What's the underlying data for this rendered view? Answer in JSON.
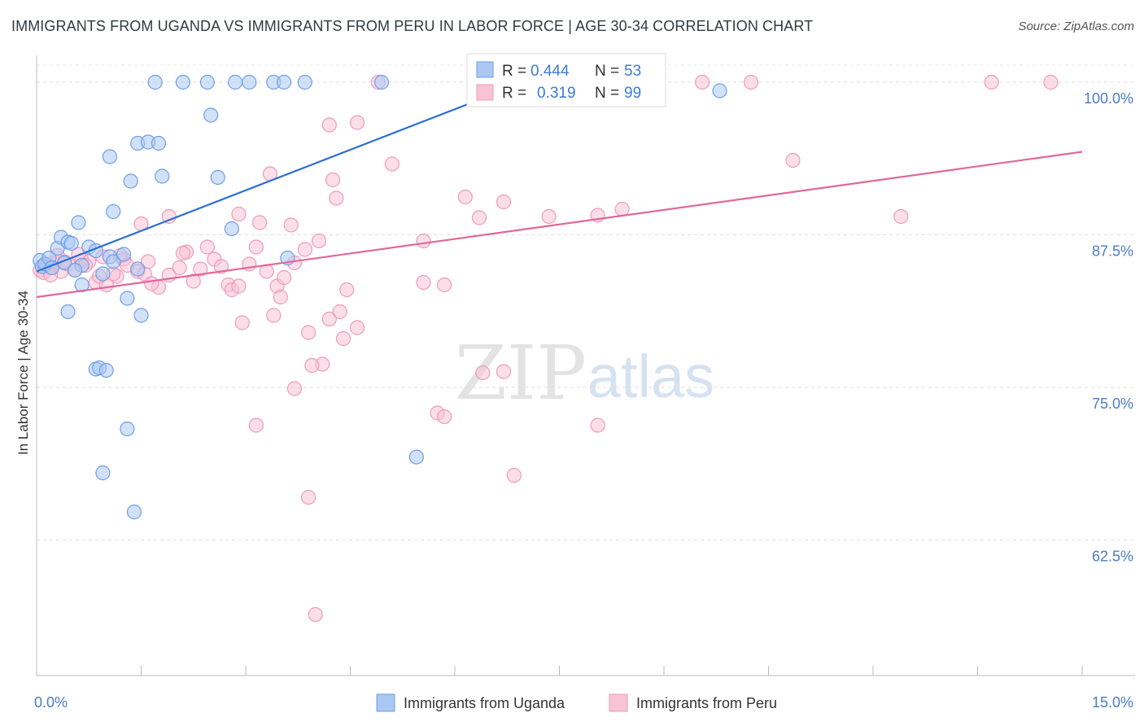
{
  "header": {
    "title": "IMMIGRANTS FROM UGANDA VS IMMIGRANTS FROM PERU IN LABOR FORCE | AGE 30-34 CORRELATION CHART",
    "source": "Source: ZipAtlas.com"
  },
  "watermark": {
    "zip": "ZIP",
    "atlas": "atlas"
  },
  "chart_data": {
    "type": "scatter",
    "title": "IMMIGRANTS FROM UGANDA VS IMMIGRANTS FROM PERU IN LABOR FORCE | AGE 30-34 CORRELATION CHART",
    "ylabel": "In Labor Force | Age 30-34",
    "xlim": [
      0,
      15
    ],
    "ylim": [
      51.4,
      102.2
    ],
    "x_tick_labels": [
      "0.0%",
      "15.0%"
    ],
    "y_ticks": [
      62.5,
      75.0,
      87.5,
      100.0
    ],
    "y_tick_labels": [
      "62.5%",
      "75.0%",
      "87.5%",
      "100.0%"
    ],
    "grid": true,
    "legend": {
      "placement": "top-center",
      "entries": [
        {
          "r_label": "R =",
          "r_value": "0.444",
          "n_label": "N =",
          "n_value": "53"
        },
        {
          "r_label": "R =",
          "r_value": "0.319",
          "n_label": "N =",
          "n_value": "99"
        }
      ]
    },
    "series": [
      {
        "name": "Immigrants from Uganda",
        "color": "#6f9ee8",
        "fill": "#aac8f2",
        "line_color": "#2c6fd1",
        "trend": {
          "x": [
            0.0,
            7.0
          ],
          "y": [
            84.5,
            100.0
          ]
        },
        "points": [
          [
            0.05,
            85.4
          ],
          [
            0.08,
            84.9
          ],
          [
            0.12,
            85.1
          ],
          [
            0.18,
            85.6
          ],
          [
            0.22,
            84.8
          ],
          [
            0.3,
            86.4
          ],
          [
            0.35,
            87.3
          ],
          [
            0.4,
            85.2
          ],
          [
            0.45,
            86.9
          ],
          [
            0.5,
            86.8
          ],
          [
            0.6,
            88.5
          ],
          [
            0.65,
            85.0
          ],
          [
            0.75,
            86.5
          ],
          [
            0.55,
            84.6
          ],
          [
            0.85,
            86.2
          ],
          [
            0.95,
            84.3
          ],
          [
            1.05,
            85.7
          ],
          [
            1.1,
            85.3
          ],
          [
            1.25,
            85.9
          ],
          [
            1.45,
            84.7
          ],
          [
            0.45,
            81.2
          ],
          [
            0.65,
            83.4
          ],
          [
            0.85,
            76.5
          ],
          [
            0.9,
            76.6
          ],
          [
            1.0,
            76.4
          ],
          [
            1.3,
            82.3
          ],
          [
            1.5,
            80.9
          ],
          [
            1.3,
            71.6
          ],
          [
            0.95,
            68.0
          ],
          [
            1.4,
            64.8
          ],
          [
            1.1,
            89.4
          ],
          [
            1.05,
            93.9
          ],
          [
            1.35,
            91.9
          ],
          [
            1.45,
            95.0
          ],
          [
            1.6,
            95.1
          ],
          [
            1.75,
            95.0
          ],
          [
            1.8,
            92.3
          ],
          [
            2.5,
            97.3
          ],
          [
            2.6,
            92.2
          ],
          [
            2.8,
            88.0
          ],
          [
            1.7,
            100.0
          ],
          [
            2.1,
            100.0
          ],
          [
            2.45,
            100.0
          ],
          [
            2.85,
            100.0
          ],
          [
            3.05,
            100.0
          ],
          [
            3.4,
            100.0
          ],
          [
            3.55,
            100.0
          ],
          [
            3.85,
            100.0
          ],
          [
            4.95,
            100.0
          ],
          [
            6.3,
            99.5
          ],
          [
            9.8,
            99.3
          ],
          [
            5.45,
            69.3
          ],
          [
            3.6,
            85.6
          ]
        ]
      },
      {
        "name": "Immigrants from Peru",
        "color": "#f09ab9",
        "fill": "#f7c3d5",
        "line_color": "#e0689a",
        "trend": {
          "x": [
            0.0,
            15.0
          ],
          "y": [
            82.4,
            94.3
          ]
        },
        "points": [
          [
            0.05,
            84.6
          ],
          [
            0.1,
            84.4
          ],
          [
            0.15,
            85.0
          ],
          [
            0.2,
            84.8
          ],
          [
            0.25,
            85.2
          ],
          [
            0.35,
            84.5
          ],
          [
            0.45,
            85.1
          ],
          [
            0.55,
            84.6
          ],
          [
            0.65,
            85.4
          ],
          [
            0.75,
            85.3
          ],
          [
            0.85,
            83.6
          ],
          [
            0.95,
            85.7
          ],
          [
            1.0,
            83.4
          ],
          [
            1.15,
            84.1
          ],
          [
            1.25,
            85.5
          ],
          [
            1.3,
            85.0
          ],
          [
            1.45,
            84.5
          ],
          [
            1.55,
            84.3
          ],
          [
            1.6,
            85.3
          ],
          [
            1.75,
            83.2
          ],
          [
            1.9,
            84.2
          ],
          [
            2.05,
            84.8
          ],
          [
            2.15,
            86.1
          ],
          [
            2.25,
            83.7
          ],
          [
            2.35,
            84.7
          ],
          [
            2.45,
            86.5
          ],
          [
            2.55,
            85.5
          ],
          [
            2.65,
            84.9
          ],
          [
            2.75,
            83.4
          ],
          [
            2.8,
            83.0
          ],
          [
            2.9,
            83.3
          ],
          [
            3.05,
            85.1
          ],
          [
            3.15,
            86.5
          ],
          [
            3.3,
            84.5
          ],
          [
            3.45,
            83.3
          ],
          [
            3.55,
            84.0
          ],
          [
            3.7,
            85.2
          ],
          [
            3.5,
            82.4
          ],
          [
            3.4,
            80.9
          ],
          [
            2.95,
            80.3
          ],
          [
            3.85,
            86.3
          ],
          [
            3.9,
            79.5
          ],
          [
            4.05,
            87.0
          ],
          [
            4.2,
            80.6
          ],
          [
            4.35,
            81.2
          ],
          [
            4.45,
            83.0
          ],
          [
            4.6,
            79.9
          ],
          [
            4.4,
            79.0
          ],
          [
            4.1,
            76.9
          ],
          [
            3.7,
            74.9
          ],
          [
            3.95,
            76.8
          ],
          [
            3.15,
            71.9
          ],
          [
            3.9,
            66.0
          ],
          [
            4.0,
            56.4
          ],
          [
            1.5,
            88.4
          ],
          [
            1.9,
            89.0
          ],
          [
            2.1,
            86.0
          ],
          [
            2.9,
            89.2
          ],
          [
            3.2,
            88.5
          ],
          [
            3.65,
            88.3
          ],
          [
            3.35,
            92.5
          ],
          [
            4.25,
            92.0
          ],
          [
            4.3,
            90.5
          ],
          [
            4.6,
            96.7
          ],
          [
            4.2,
            96.5
          ],
          [
            5.1,
            93.3
          ],
          [
            5.55,
            87.0
          ],
          [
            5.55,
            83.6
          ],
          [
            5.85,
            83.4
          ],
          [
            6.15,
            90.6
          ],
          [
            6.35,
            88.9
          ],
          [
            6.7,
            90.2
          ],
          [
            6.4,
            76.2
          ],
          [
            6.7,
            76.3
          ],
          [
            5.75,
            72.9
          ],
          [
            5.85,
            72.6
          ],
          [
            6.85,
            67.8
          ],
          [
            7.35,
            89.0
          ],
          [
            8.05,
            89.1
          ],
          [
            8.4,
            89.6
          ],
          [
            8.05,
            71.9
          ],
          [
            9.55,
            100.0
          ],
          [
            10.25,
            100.0
          ],
          [
            10.85,
            93.6
          ],
          [
            12.4,
            89.0
          ],
          [
            13.7,
            100.0
          ],
          [
            14.55,
            100.0
          ],
          [
            7.15,
            100.0
          ],
          [
            7.55,
            100.0
          ],
          [
            4.9,
            100.0
          ],
          [
            0.3,
            85.8
          ],
          [
            0.6,
            85.9
          ],
          [
            1.1,
            84.3
          ],
          [
            0.7,
            85.0
          ],
          [
            0.2,
            84.2
          ],
          [
            1.2,
            85.8
          ],
          [
            0.4,
            85.3
          ],
          [
            0.9,
            84.1
          ],
          [
            1.65,
            83.5
          ]
        ]
      }
    ]
  },
  "bottom_legend": {
    "items": [
      {
        "label": "Immigrants from Uganda"
      },
      {
        "label": "Immigrants from Peru"
      }
    ]
  }
}
